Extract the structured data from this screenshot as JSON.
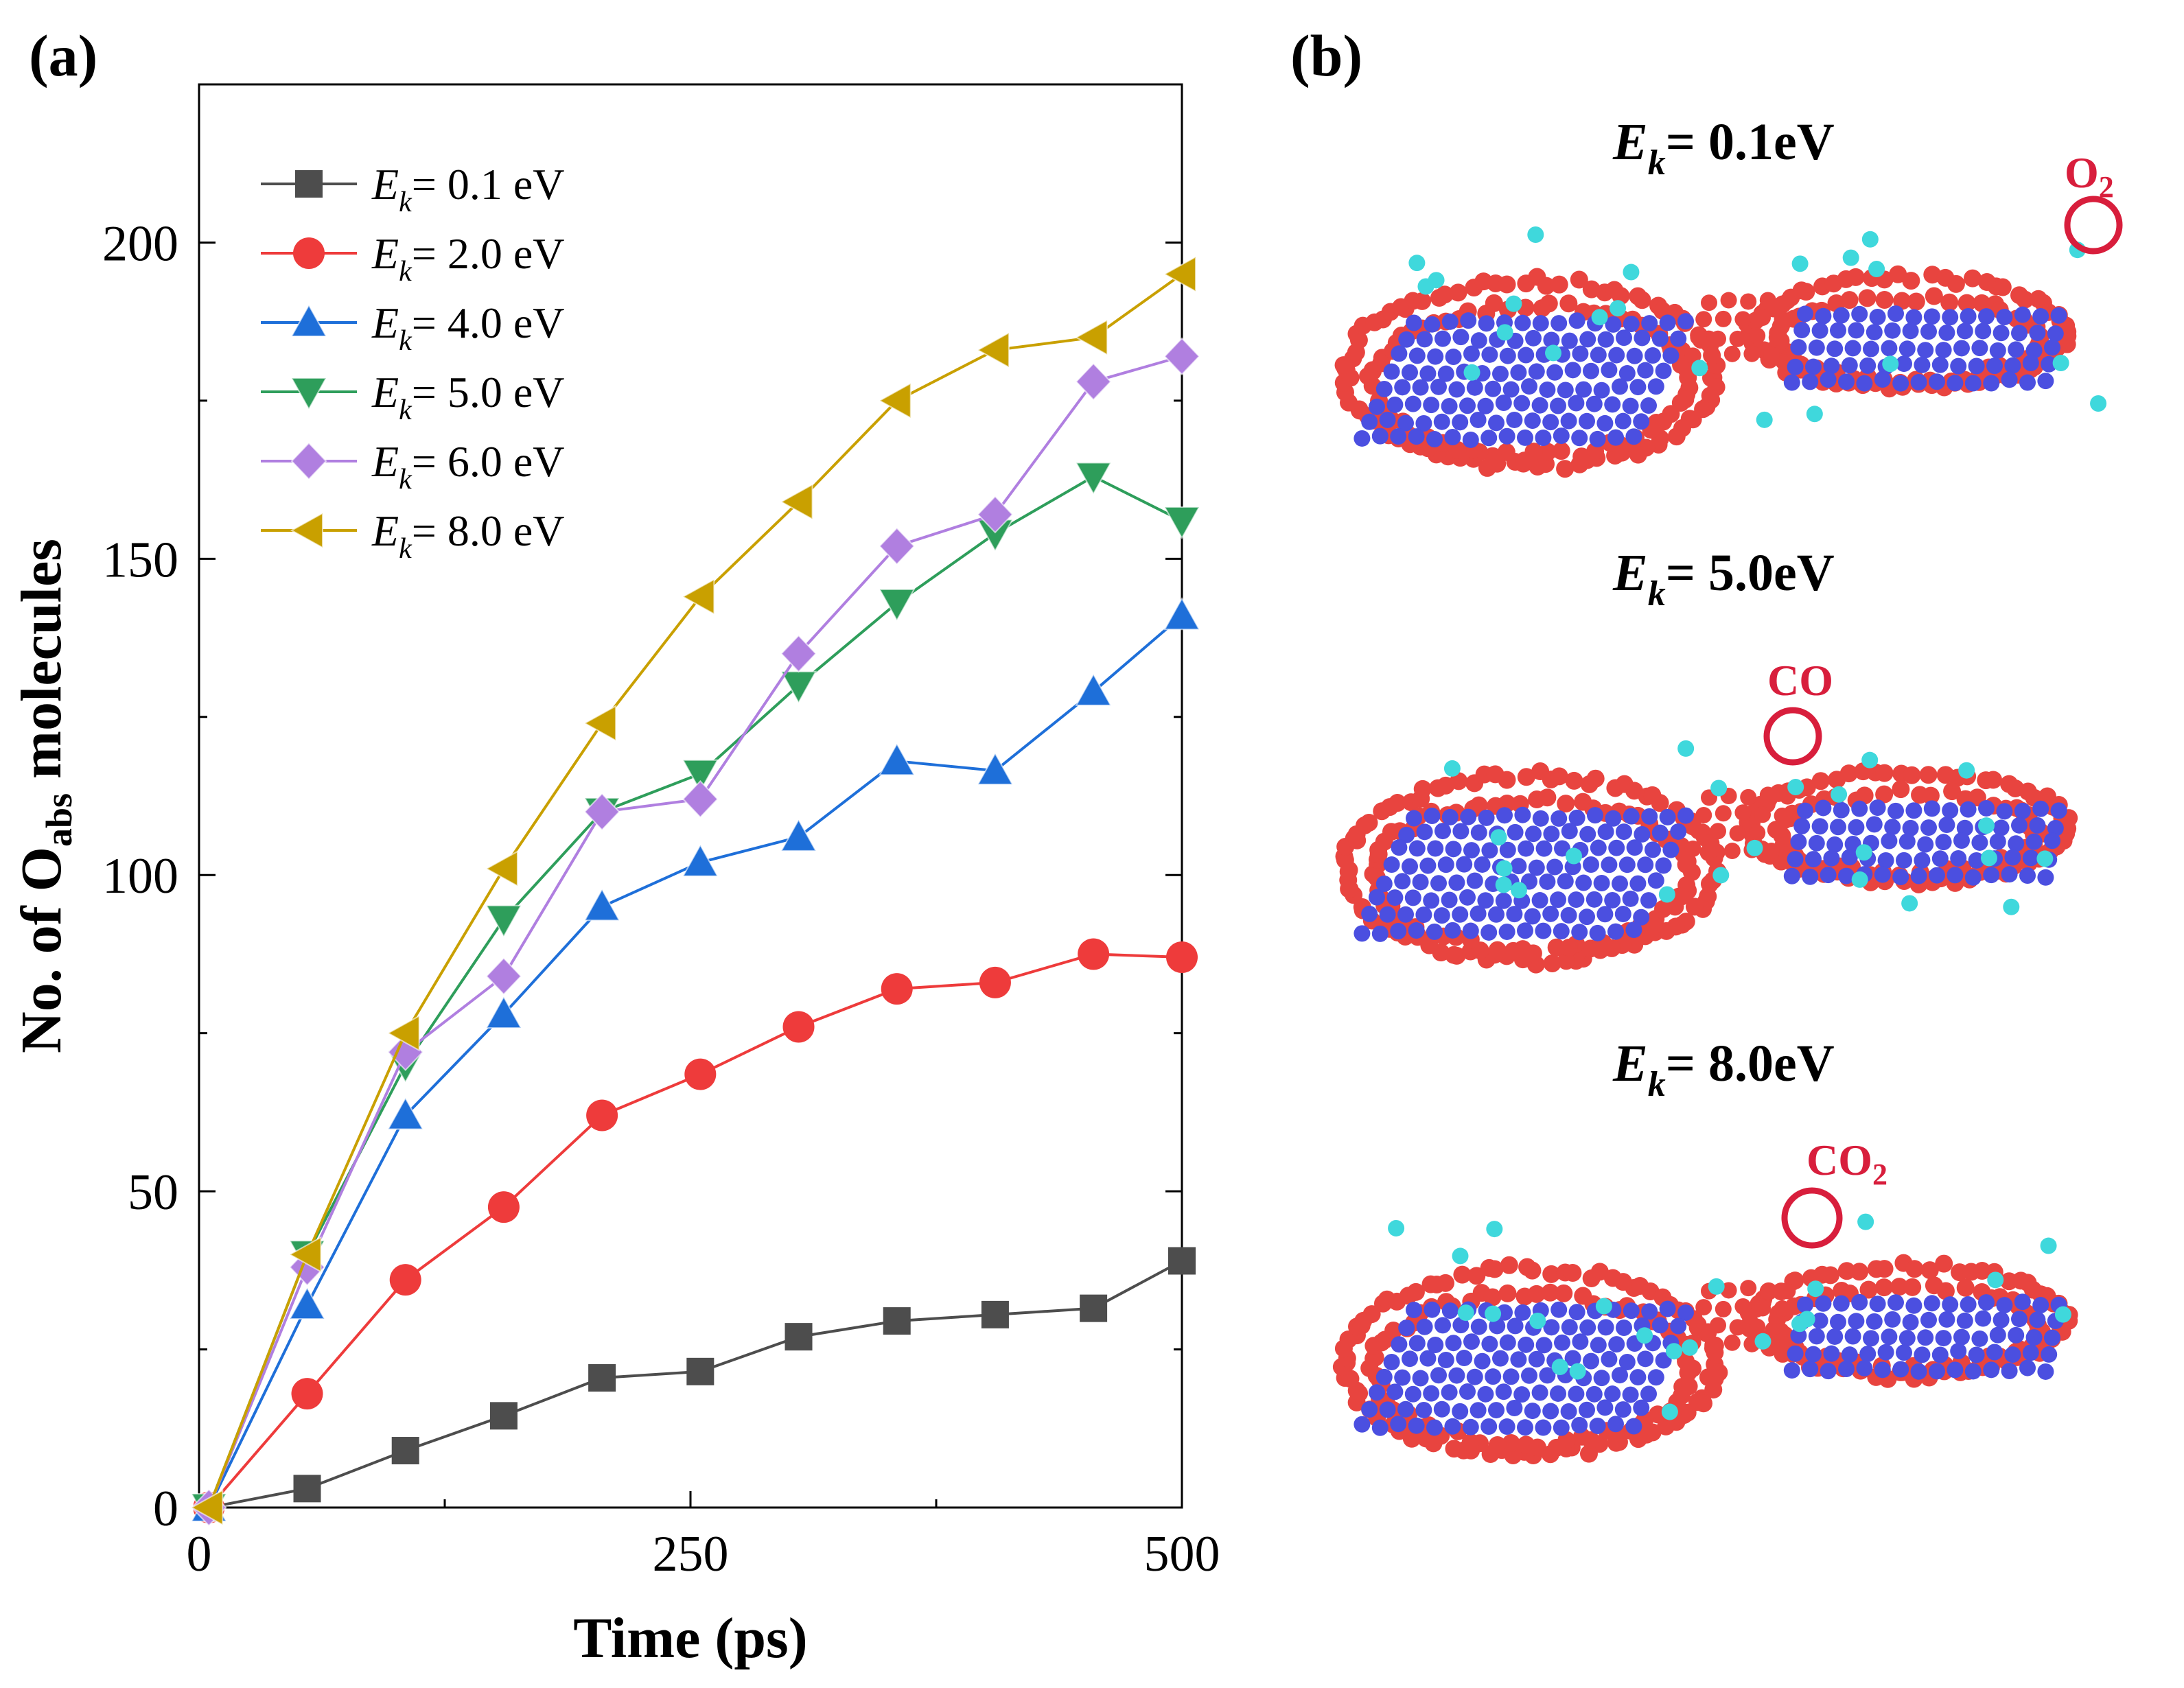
{
  "panels": {
    "a": "(a)",
    "b": "(b)"
  },
  "chart_data": {
    "type": "line",
    "title": "",
    "xlabel": "Time (ps)",
    "ylabel": {
      "prefix": "No. of O",
      "subscript": "abs",
      "suffix": " molecules"
    },
    "xlim": [
      0,
      500
    ],
    "ylim": [
      0,
      225
    ],
    "xticks": [
      0,
      250,
      500
    ],
    "yticks": [
      0,
      50,
      100,
      150,
      200
    ],
    "x": [
      5,
      55,
      105,
      155,
      205,
      255,
      305,
      355,
      405,
      455,
      500
    ],
    "legend_position": "top-left",
    "series": [
      {
        "name": "E_k = 0.1 eV",
        "label_e": "E",
        "label_k": "k",
        "label_val": "= 0.1 eV",
        "color": "#4d4d4d",
        "marker": "square",
        "values": [
          0,
          3,
          9,
          14.5,
          20.5,
          21.5,
          27,
          29.5,
          30.5,
          31.5,
          39
        ]
      },
      {
        "name": "E_k = 2.0 eV",
        "label_e": "E",
        "label_k": "k",
        "label_val": "= 2.0 eV",
        "color": "#ee3b3b",
        "marker": "circle",
        "values": [
          0,
          18,
          36,
          47.5,
          62,
          68.5,
          76,
          82,
          83,
          87.5,
          87
        ]
      },
      {
        "name": "E_k = 4.0 eV",
        "label_e": "E",
        "label_k": "k",
        "label_val": "= 4.0 eV",
        "color": "#1e6fd9",
        "marker": "triangle-up",
        "values": [
          0,
          32,
          62,
          78,
          95,
          102,
          106,
          118,
          116.5,
          129,
          141
        ]
      },
      {
        "name": "E_k = 5.0 eV",
        "label_e": "E",
        "label_k": "k",
        "label_val": "= 5.0 eV",
        "color": "#2e9e5b",
        "marker": "triangle-down",
        "values": [
          0,
          40,
          70,
          93,
          110,
          116,
          130,
          143,
          154,
          163,
          156
        ]
      },
      {
        "name": "E_k = 6.0 eV",
        "label_e": "E",
        "label_k": "k",
        "label_val": "= 6.0 eV",
        "color": "#b07fe0",
        "marker": "diamond",
        "values": [
          0,
          38,
          72,
          84,
          110,
          112,
          135,
          152,
          157,
          178,
          182
        ]
      },
      {
        "name": "E_k = 8.0 eV",
        "label_e": "E",
        "label_k": "k",
        "label_val": "= 8.0 eV",
        "color": "#c9a000",
        "marker": "triangle-left",
        "values": [
          0,
          40,
          75,
          101,
          124,
          144,
          159,
          175,
          183,
          185,
          195
        ]
      }
    ]
  },
  "snapshots": [
    {
      "e": "E",
      "k": "k",
      "val": "= 0.1eV",
      "annotation": {
        "base": "O",
        "sub": "2"
      }
    },
    {
      "e": "E",
      "k": "k",
      "val": "= 5.0eV",
      "annotation": {
        "base": "CO",
        "sub": ""
      }
    },
    {
      "e": "E",
      "k": "k",
      "val": "= 8.0eV",
      "annotation": {
        "base": "CO",
        "sub": "2"
      }
    }
  ],
  "colors": {
    "carbon_shell": "#e8443f",
    "inner_atoms": "#4b4fe0",
    "oxygen": "#3fd8dc",
    "annotation": "#d81e3c"
  }
}
